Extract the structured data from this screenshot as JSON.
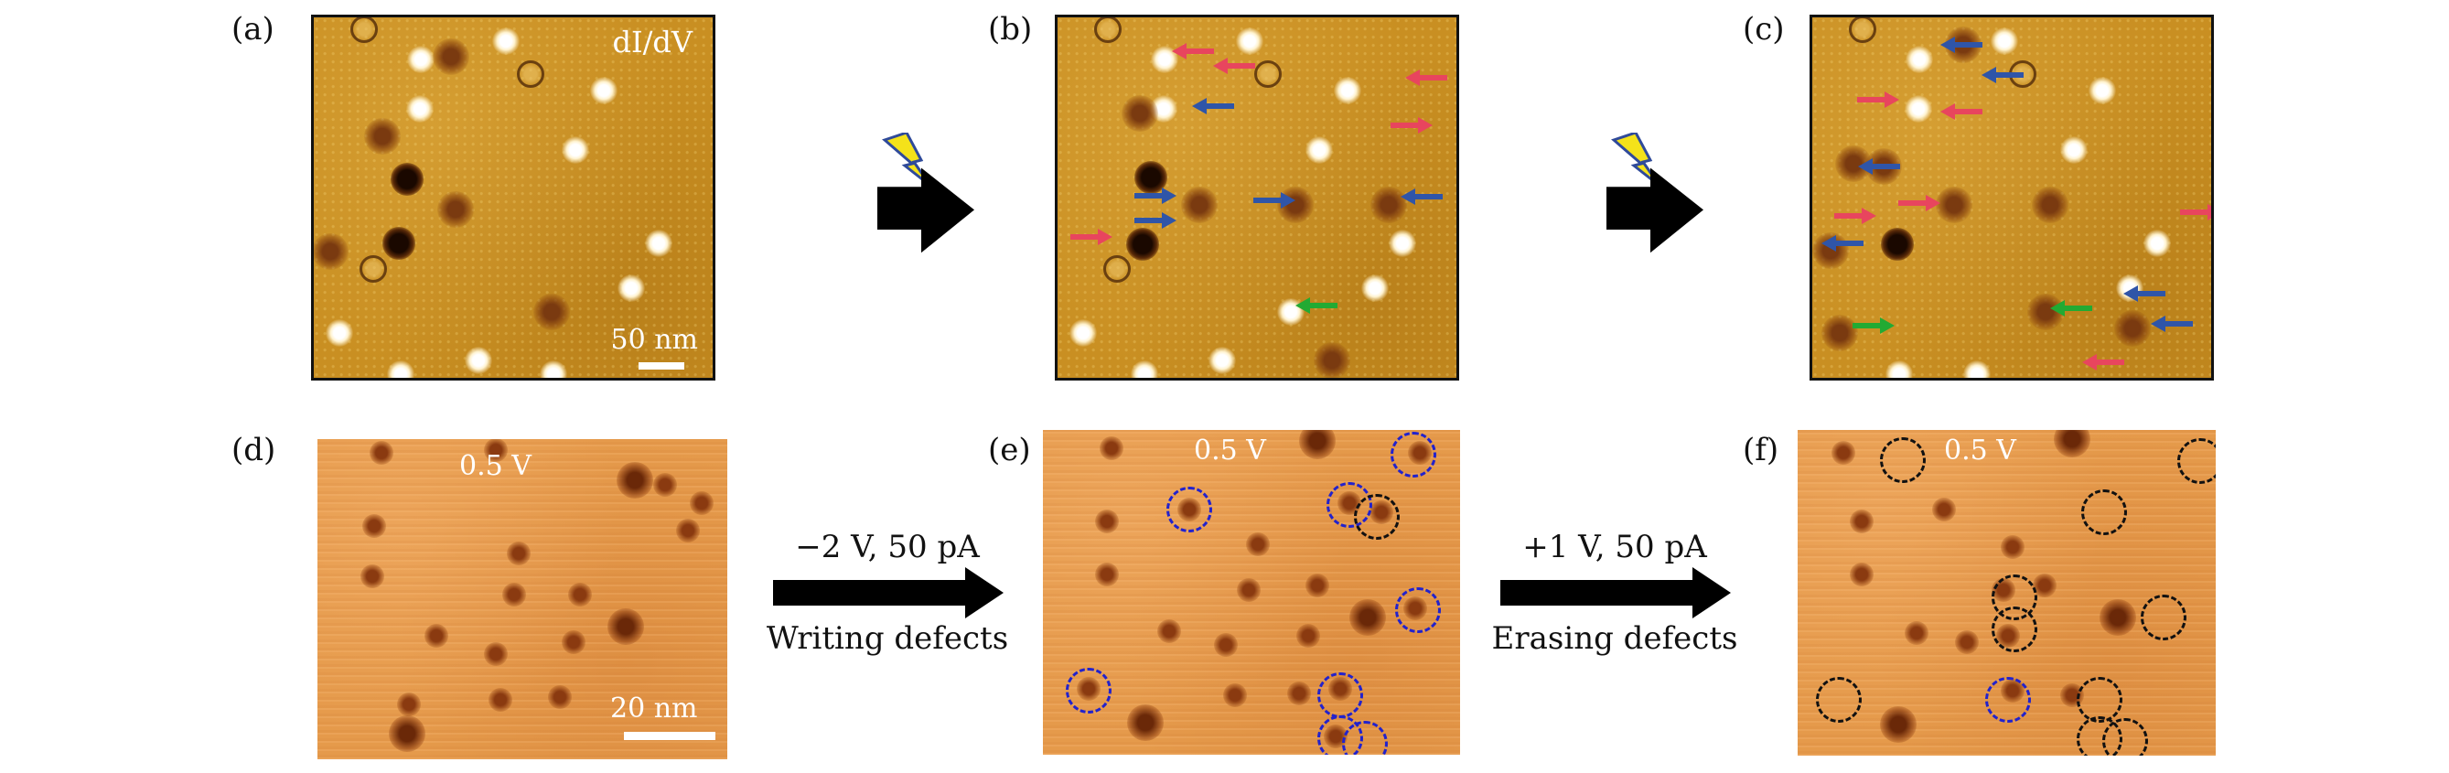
{
  "labels": [
    "(a)",
    "(b)",
    "(c)",
    "(d)",
    "(e)",
    "(f)"
  ],
  "panel_a": {
    "title": "dI/dV",
    "scale": "50 nm"
  },
  "panel_d": {
    "bias": "0.5 V",
    "scale": "20 nm"
  },
  "panel_e": {
    "bias": "0.5 V"
  },
  "panel_f": {
    "bias": "0.5 V"
  },
  "step_write": {
    "params": "−2 V, 50 pA",
    "caption": "Writing defects"
  },
  "step_erase": {
    "params": "+1 V, 50 pA",
    "caption": "Erasing defects"
  },
  "colors": {
    "red_arrow": "#e8455e",
    "blue_arrow": "#2f55a8",
    "green_arrow": "#22aa33",
    "blue_circle": "#2222cc",
    "black_circle": "#111111"
  },
  "icons": [
    "pulse-lightning-icon",
    "process-arrow-icon"
  ]
}
